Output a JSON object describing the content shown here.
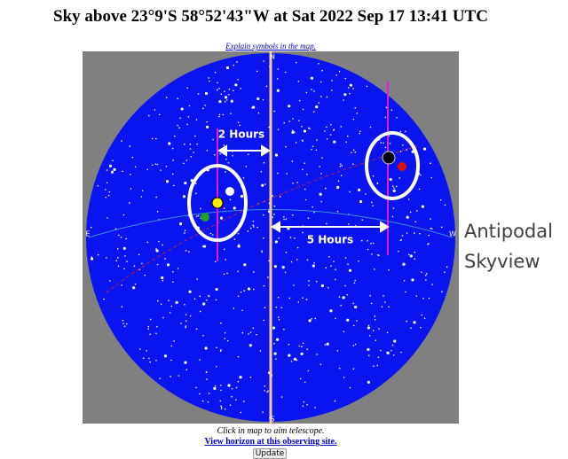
{
  "header": {
    "title": "Sky above 23°9'S 58°52'43\"W at Sat 2022 Sep 17 13:41 UTC",
    "link": "Explain symbols in the map."
  },
  "map": {
    "compass": {
      "north": "N",
      "south": "S",
      "east": "E",
      "west": "W"
    }
  },
  "annotations": {
    "left_arrow": "2 Hours",
    "right_arrow": "5 Hours",
    "side_label": [
      "Antipodal",
      "Skyview"
    ]
  },
  "footer": {
    "hint": "Click in map to aim telescope.",
    "horizon_link": "View horizon at this observing site.",
    "button": "Update"
  }
}
